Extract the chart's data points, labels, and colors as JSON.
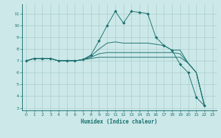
{
  "title": "",
  "xlabel": "Humidex (Indice chaleur)",
  "ylabel": "",
  "background_color": "#cce8e8",
  "line_color": "#1a7070",
  "grid_color": "#aacccc",
  "xlim": [
    -0.5,
    23.5
  ],
  "ylim": [
    2.8,
    11.8
  ],
  "yticks": [
    3,
    4,
    5,
    6,
    7,
    8,
    9,
    10,
    11
  ],
  "xticks": [
    0,
    1,
    2,
    3,
    4,
    5,
    6,
    7,
    8,
    9,
    10,
    11,
    12,
    13,
    14,
    15,
    16,
    17,
    18,
    19,
    20,
    21,
    22,
    23
  ],
  "curves": [
    {
      "x": [
        0,
        1,
        2,
        3,
        4,
        5,
        6,
        7,
        8,
        9,
        10,
        11,
        12,
        13,
        14,
        15,
        16,
        17,
        18,
        19,
        20,
        21,
        22
      ],
      "y": [
        7.0,
        7.2,
        7.2,
        7.2,
        7.0,
        7.0,
        7.0,
        7.1,
        7.5,
        8.7,
        10.0,
        11.2,
        10.2,
        11.2,
        11.1,
        11.0,
        9.0,
        8.3,
        7.9,
        6.7,
        6.0,
        3.9,
        3.2
      ],
      "marker": true
    },
    {
      "x": [
        0,
        1,
        2,
        3,
        4,
        5,
        6,
        7,
        8,
        9,
        10,
        11,
        12,
        13,
        14,
        15,
        16,
        17,
        18,
        19,
        20,
        21,
        22
      ],
      "y": [
        7.0,
        7.2,
        7.2,
        7.2,
        7.0,
        7.0,
        7.0,
        7.1,
        7.4,
        8.0,
        8.5,
        8.6,
        8.5,
        8.5,
        8.5,
        8.5,
        8.4,
        8.3,
        7.9,
        7.9,
        6.8,
        6.0,
        3.2
      ],
      "marker": false
    },
    {
      "x": [
        0,
        1,
        2,
        3,
        4,
        5,
        6,
        7,
        8,
        9,
        10,
        11,
        12,
        13,
        14,
        15,
        16,
        17,
        18,
        19,
        20,
        21,
        22
      ],
      "y": [
        7.0,
        7.2,
        7.2,
        7.2,
        7.0,
        7.0,
        7.0,
        7.1,
        7.3,
        7.6,
        7.7,
        7.7,
        7.7,
        7.7,
        7.7,
        7.7,
        7.7,
        7.7,
        7.7,
        7.6,
        6.8,
        6.0,
        3.2
      ],
      "marker": false
    },
    {
      "x": [
        0,
        1,
        2,
        3,
        4,
        5,
        6,
        7,
        8,
        9,
        10,
        11,
        12,
        13,
        14,
        15,
        16,
        17,
        18,
        19,
        20,
        21,
        22
      ],
      "y": [
        7.0,
        7.2,
        7.2,
        7.2,
        7.0,
        7.0,
        7.0,
        7.1,
        7.2,
        7.3,
        7.3,
        7.3,
        7.3,
        7.3,
        7.3,
        7.3,
        7.3,
        7.3,
        7.3,
        7.3,
        6.8,
        6.0,
        3.2
      ],
      "marker": false
    }
  ]
}
